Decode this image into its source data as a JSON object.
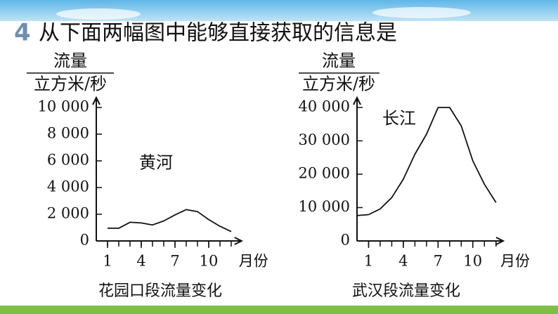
{
  "question": {
    "number": "4",
    "text": "从下面两幅图中能够直接获取的信息是"
  },
  "chart_data": [
    {
      "type": "line",
      "title": "花园口段流量变化",
      "annotation": "黄河",
      "ylabel": {
        "top": "流量",
        "bottom": "立方米/秒"
      },
      "xlabel": "月份",
      "x": [
        1,
        2,
        3,
        4,
        5,
        6,
        7,
        8,
        9,
        10,
        11,
        12
      ],
      "series": [
        {
          "name": "黄河",
          "color": "#111111",
          "values": [
            950,
            950,
            1400,
            1350,
            1200,
            1500,
            1950,
            2350,
            2200,
            1600,
            1100,
            700
          ]
        }
      ],
      "xlim": [
        0,
        12.8
      ],
      "xticks": [
        1,
        4,
        7,
        10
      ],
      "ylim": [
        0,
        10000
      ],
      "yticks": [
        0,
        {
          "value": 2000,
          "label": "2 000"
        },
        {
          "value": 4000,
          "label": "4 000"
        },
        {
          "value": 6000,
          "label": "6 000"
        },
        {
          "value": 8000,
          "label": "8 000"
        },
        {
          "value": 10000,
          "label": "10 000"
        }
      ]
    },
    {
      "type": "line",
      "title": "武汉段流量变化",
      "annotation": "长江",
      "ylabel": {
        "top": "流量",
        "bottom": "立方米/秒"
      },
      "xlabel": "月份",
      "x": [
        0,
        1,
        2,
        3,
        4,
        5,
        6,
        7,
        8,
        9,
        10,
        11,
        12
      ],
      "series": [
        {
          "name": "长江",
          "color": "#111111",
          "values": [
            7600,
            7900,
            9600,
            13000,
            18500,
            26000,
            32000,
            40000,
            40000,
            34500,
            24000,
            17000,
            11500
          ]
        }
      ],
      "xlim": [
        0,
        12.5
      ],
      "xticks": [
        1,
        4,
        7,
        10
      ],
      "ylim": [
        0,
        40000
      ],
      "yticks": [
        0,
        {
          "value": 10000,
          "label": "10 000"
        },
        {
          "value": 20000,
          "label": "20 000"
        },
        {
          "value": 30000,
          "label": "30 000"
        },
        {
          "value": 40000,
          "label": "40 000"
        }
      ]
    }
  ]
}
